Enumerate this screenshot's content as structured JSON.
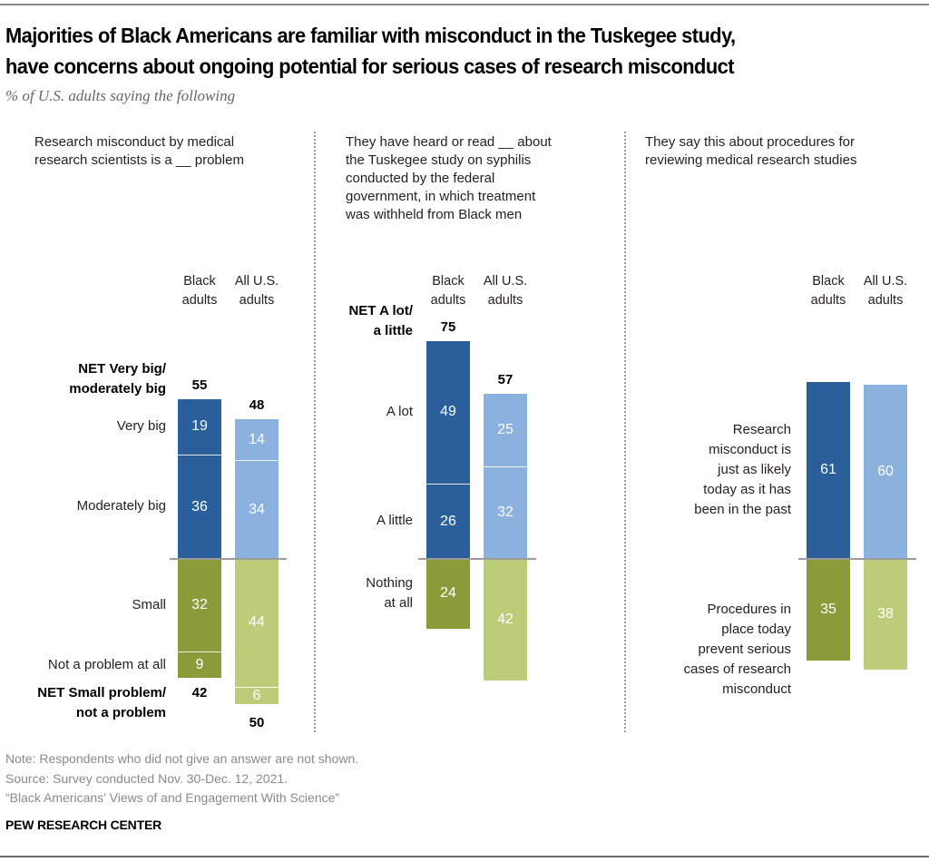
{
  "title_line1": "Majorities of Black Americans are familiar with misconduct in the Tuskegee study,",
  "title_line2": "have concerns about ongoing potential for serious cases of research misconduct",
  "subtitle": "% of U.S. adults saying the following",
  "colors": {
    "black_positive": "#2a5f9c",
    "all_positive": "#8bb1df",
    "black_negative": "#8a9c3a",
    "all_negative": "#bccd7a"
  },
  "chart_data": [
    {
      "type": "bar",
      "stacked": true,
      "diverging": true,
      "title": "Research misconduct by medical research scientists is a __ problem",
      "categories": [
        "Black adults",
        "All U.S. adults"
      ],
      "column_headers": [
        [
          "Black",
          "adults"
        ],
        [
          "All U.S.",
          "adults"
        ]
      ],
      "positive_segments": [
        {
          "name": "Very big",
          "values": [
            19,
            14
          ]
        },
        {
          "name": "Moderately big",
          "values": [
            36,
            34
          ]
        }
      ],
      "negative_segments": [
        {
          "name": "Small",
          "values": [
            32,
            44
          ]
        },
        {
          "name": "Not a problem at all",
          "values": [
            9,
            6
          ]
        }
      ],
      "net_positive": {
        "label_line1": "NET Very big/",
        "label_line2": "moderately big",
        "values": [
          55,
          48
        ]
      },
      "net_negative": {
        "label_line1": "NET Small problem/",
        "label_line2": "not a problem",
        "values": [
          42,
          50
        ]
      },
      "unit": "%"
    },
    {
      "type": "bar",
      "stacked": true,
      "diverging": true,
      "title": "They have heard or read __ about the Tuskegee study on syphilis conducted by the federal government, in which treatment was withheld from Black men",
      "categories": [
        "Black adults",
        "All U.S. adults"
      ],
      "column_headers": [
        [
          "Black",
          "adults"
        ],
        [
          "All U.S.",
          "adults"
        ]
      ],
      "positive_segments": [
        {
          "name": "A lot",
          "values": [
            49,
            25
          ]
        },
        {
          "name": "A little",
          "values": [
            26,
            32
          ]
        }
      ],
      "negative_segments": [
        {
          "name": "Nothing at all",
          "values": [
            24,
            42
          ]
        }
      ],
      "net_positive": {
        "label_line1": "NET A lot/",
        "label_line2": "a little",
        "values": [
          75,
          57
        ]
      },
      "unit": "%"
    },
    {
      "type": "bar",
      "stacked": true,
      "diverging": true,
      "title": "They say this about procedures for reviewing medical research studies",
      "categories": [
        "Black adults",
        "All U.S. adults"
      ],
      "column_headers": [
        [
          "Black",
          "adults"
        ],
        [
          "All U.S.",
          "adults"
        ]
      ],
      "positive_segments": [
        {
          "name": "Research misconduct is just as likely today as it has been in the past",
          "values": [
            61,
            60
          ]
        }
      ],
      "negative_segments": [
        {
          "name": "Procedures in place today prevent serious cases of research misconduct",
          "values": [
            35,
            38
          ]
        }
      ],
      "unit": "%"
    }
  ],
  "panels": [
    {
      "question_lines": [
        "Research misconduct by medical",
        "research scientists is a __ problem"
      ],
      "segment_label_lines": {
        "Very big": [
          "Very big"
        ],
        "Moderately big": [
          "Moderately big"
        ],
        "Small": [
          "Small"
        ],
        "Not a problem at all": [
          "Not a problem at all"
        ]
      }
    },
    {
      "question_lines": [
        "They have heard or read __ about",
        "the Tuskegee study on syphilis",
        "conducted by the federal",
        "government, in which treatment",
        "was withheld from Black men"
      ],
      "segment_label_lines": {
        "A lot": [
          "A lot"
        ],
        "A little": [
          "A little"
        ],
        "Nothing at all": [
          "Nothing",
          "at all"
        ]
      }
    },
    {
      "question_lines": [
        "They say this about procedures for",
        "reviewing medical research studies"
      ],
      "segment_label_lines": {
        "Research misconduct is just as likely today as it has been in the past": [
          "Research",
          "misconduct is",
          "just as likely",
          "today as it has",
          "been in the past"
        ],
        "Procedures in place today prevent serious cases of research misconduct": [
          "Procedures in",
          "place today",
          "prevent serious",
          "cases of research",
          "misconduct"
        ]
      }
    }
  ],
  "footer": {
    "note": "Note: Respondents who did not give an answer are not shown.",
    "source": "Source: Survey conducted Nov. 30-Dec. 12, 2021.",
    "report": "“Black Americans’ Views of and Engagement With Science”",
    "org": "PEW RESEARCH CENTER"
  }
}
